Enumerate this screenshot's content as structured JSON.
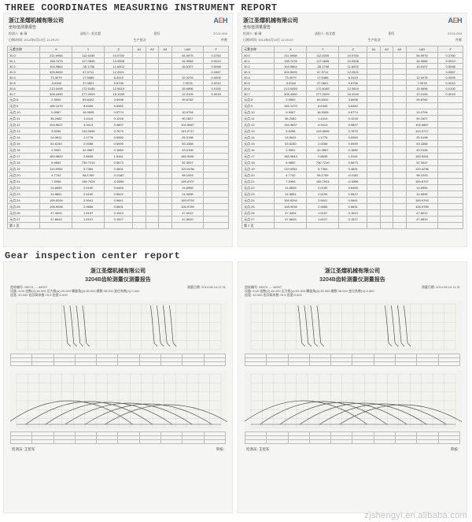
{
  "titles": {
    "cmm": "THREE COORDINATES MEASURING INSTRUMENT REPORT",
    "gear": "Gear inspection center report"
  },
  "watermark": "zjshengyi.en.alibaba.com",
  "cmm_report": {
    "company_cn": "浙江圣熠机械有限公司",
    "subtitle_cn": "坐标值测量报告",
    "logo_text": "AEH",
    "meta": {
      "l1a": "检测人",
      "l1b": "崔 晴",
      "l1c": "送检人",
      "l1d": "毛文超",
      "l1e": "图号",
      "l1f": "ZC01-004",
      "l2a": "日期/时间",
      "l2b": "2014年8月19日 13:29:20",
      "l2c": "生产批次",
      "l2d": "件数",
      "headers": [
        "元素名称",
        "X",
        "Y",
        "Z",
        "A1",
        "A2",
        "A3",
        "LAD",
        "F"
      ]
    },
    "rows": [
      [
        "30.0",
        "211.9998",
        "112.6039",
        "10.9750",
        "",
        "",
        "",
        "54.9975",
        "0.3760"
      ],
      [
        "30.1",
        "198.7476",
        "117.0845",
        "10.0508",
        "",
        "",
        "",
        "34.9984",
        "0.0010"
      ],
      [
        "30.2",
        "104.9864",
        "-35.1796",
        "11.6002",
        "",
        "",
        "",
        "16.5107",
        "0.5098"
      ],
      [
        "30.3",
        "325.5059",
        "67.9711",
        "12.2521",
        "",
        "",
        "",
        "",
        "0.0587"
      ],
      [
        "30.4",
        "73.3079",
        "17.5485",
        "8.2419",
        "",
        "",
        "",
        "12.0276",
        "0.0005"
      ],
      [
        "30.5",
        "-3.6344",
        "37.0801",
        "9.6798",
        "",
        "",
        "",
        "7.0078",
        "0.0010"
      ],
      [
        "30.6",
        "213.0495",
        "172.6185",
        "12.9819",
        "",
        "",
        "",
        "15.9896",
        "0.0100"
      ],
      [
        "30.7",
        "308.4490",
        "277.0009",
        "16.1949",
        "",
        "",
        "",
        "12.0105",
        "0.0015"
      ],
      [
        "元点.8",
        "2.5900",
        "69.8302",
        "3.6998",
        "",
        "",
        "",
        "99.8782",
        ""
      ],
      [
        "元点.9",
        "185.1470",
        "8.6345",
        "5.6382",
        "",
        "",
        "",
        "",
        ""
      ],
      [
        "元点.10",
        "0.9967",
        "16.9505",
        "0.5774",
        "",
        "",
        "",
        "10.9794",
        ""
      ],
      [
        "元点.11",
        "36.2482",
        "1.4414",
        "0.1218",
        "",
        "",
        "",
        "90.1627",
        ""
      ],
      [
        "元点.12",
        "194.9637",
        "4.9413",
        "0.9897",
        "",
        "",
        "",
        "104.9867",
        ""
      ],
      [
        "元点.13",
        "3.9256",
        "143.0696",
        "0.7679",
        "",
        "",
        "",
        "143.0717",
        ""
      ],
      [
        "元点.14",
        "24.9611",
        "1.1776",
        "0.5960",
        "",
        "",
        "",
        "25.0198",
        ""
      ],
      [
        "元点.15",
        "53.6150",
        "2.0058",
        "0.5999",
        "",
        "",
        "",
        "53.4368",
        ""
      ],
      [
        "元点.16",
        "2.9501",
        "42.9867",
        "0.1680",
        "",
        "",
        "",
        "43.0106",
        ""
      ],
      [
        "元点.17",
        "183.9843",
        "2.8635",
        "1.5161",
        "",
        "",
        "",
        "183.9281",
        ""
      ],
      [
        "元点.18",
        "6.9852",
        "730.7210",
        "0.5673",
        "",
        "",
        "",
        "52.3047",
        ""
      ],
      [
        "元点.19",
        "119.9954",
        "5.7364",
        "0.4831",
        "",
        "",
        "",
        "120.0236",
        ""
      ],
      [
        "元点.20",
        "4.7742",
        "98.1769",
        "-0.0182",
        "",
        "",
        "",
        "98.1003",
        ""
      ],
      [
        "元点.21",
        "7.5396",
        "159.7924",
        "-0.5396",
        "",
        "",
        "",
        "159.8707",
        ""
      ],
      [
        "元点.22",
        "14.8695",
        "2.0190",
        "0.6465",
        "",
        "",
        "",
        "14.8955",
        ""
      ],
      [
        "元点.23",
        "14.9851",
        "2.5190",
        "0.5622",
        "",
        "",
        "",
        "14.9696",
        ""
      ],
      [
        "元点.24",
        "159.9294",
        "2.9041",
        "0.9641",
        "",
        "",
        "",
        "159.9793",
        ""
      ],
      [
        "元点.25",
        "108.9036",
        "2.9656",
        "0.5831",
        "",
        "",
        "",
        "106.9789",
        ""
      ],
      [
        "元点.26",
        "47.4404",
        "1.5157",
        "0.1513",
        "",
        "",
        "",
        "47.6012",
        ""
      ],
      [
        "元点.27",
        "47.6643",
        "1.6107",
        "0.1527",
        "",
        "",
        "",
        "47.8510",
        ""
      ],
      [
        "第 2 页",
        "",
        "",
        "",
        "",
        "",
        "",
        "",
        ""
      ]
    ]
  },
  "gear_report": {
    "company_cn": "浙江圣熠机械有限公司",
    "title_cn": "3204B齿轮测量仪测量报告",
    "meta_rows": [
      [
        "齿轮编号: MDO1 — 4#007",
        "测量日期: 2014.08.14.11.31"
      ],
      [
        "设备: 6.00 齿数(Z):46.000 压力角(α):20.000 螺旋角(β):35.000 模数:35.000 变位系数(X):0.000",
        ""
      ],
      [
        "齿宽: 40.000 齿顶高系数:76.5 齿宽:0.000",
        ""
      ]
    ],
    "foot_left": "检测员: 王智军",
    "foot_right": "审核:"
  },
  "chart_style": {
    "bg": "#f2f2ef",
    "grid": "#cfcfc9",
    "line": "#555555",
    "curve": "#555555",
    "axis": "#888888",
    "profile_width": 276,
    "profile_height": 66,
    "lead_height": 76
  },
  "mini_grid_cols": 10,
  "mini_grid_rows": 3
}
